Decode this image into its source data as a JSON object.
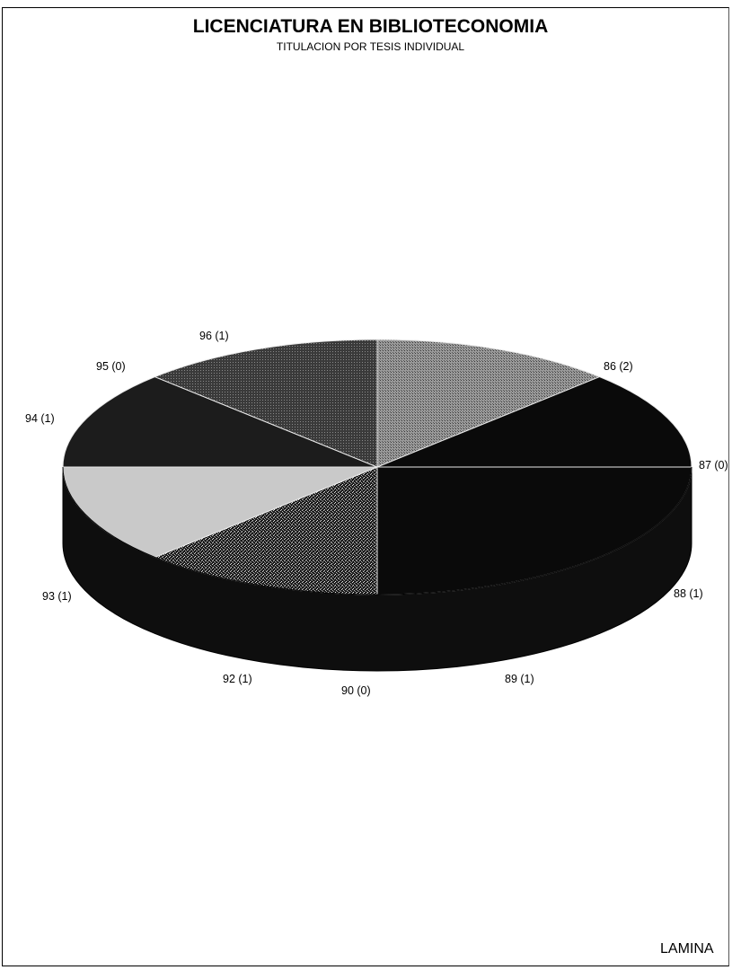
{
  "chart_data": {
    "type": "pie",
    "title": "LICENCIATURA EN BIBLIOTECONOMIA",
    "subtitle": "TITULACION POR TESIS INDIVIDUAL",
    "categories": [
      "86",
      "87",
      "88",
      "89",
      "90",
      "92",
      "93",
      "94",
      "95",
      "96"
    ],
    "values": [
      2,
      0,
      1,
      1,
      0,
      1,
      1,
      1,
      0,
      1
    ],
    "labels": [
      "86 (2)",
      "87 (0)",
      "88 (1)",
      "89 (1)",
      "90 (0)",
      "92 (1)",
      "93 (1)",
      "94 (1)",
      "95 (0)",
      "96 (1)"
    ],
    "colors": [
      "#0a0a0a",
      "#1a1a1a",
      "#2a2a2a",
      "#c8c8c8",
      "#1a1a1a",
      "#1c1c1c",
      "#3e3e3e",
      "#8c8c8c",
      "#555555",
      "#0a0a0a"
    ],
    "style": "3d"
  },
  "footer": {
    "lamina": "LAMINA"
  }
}
